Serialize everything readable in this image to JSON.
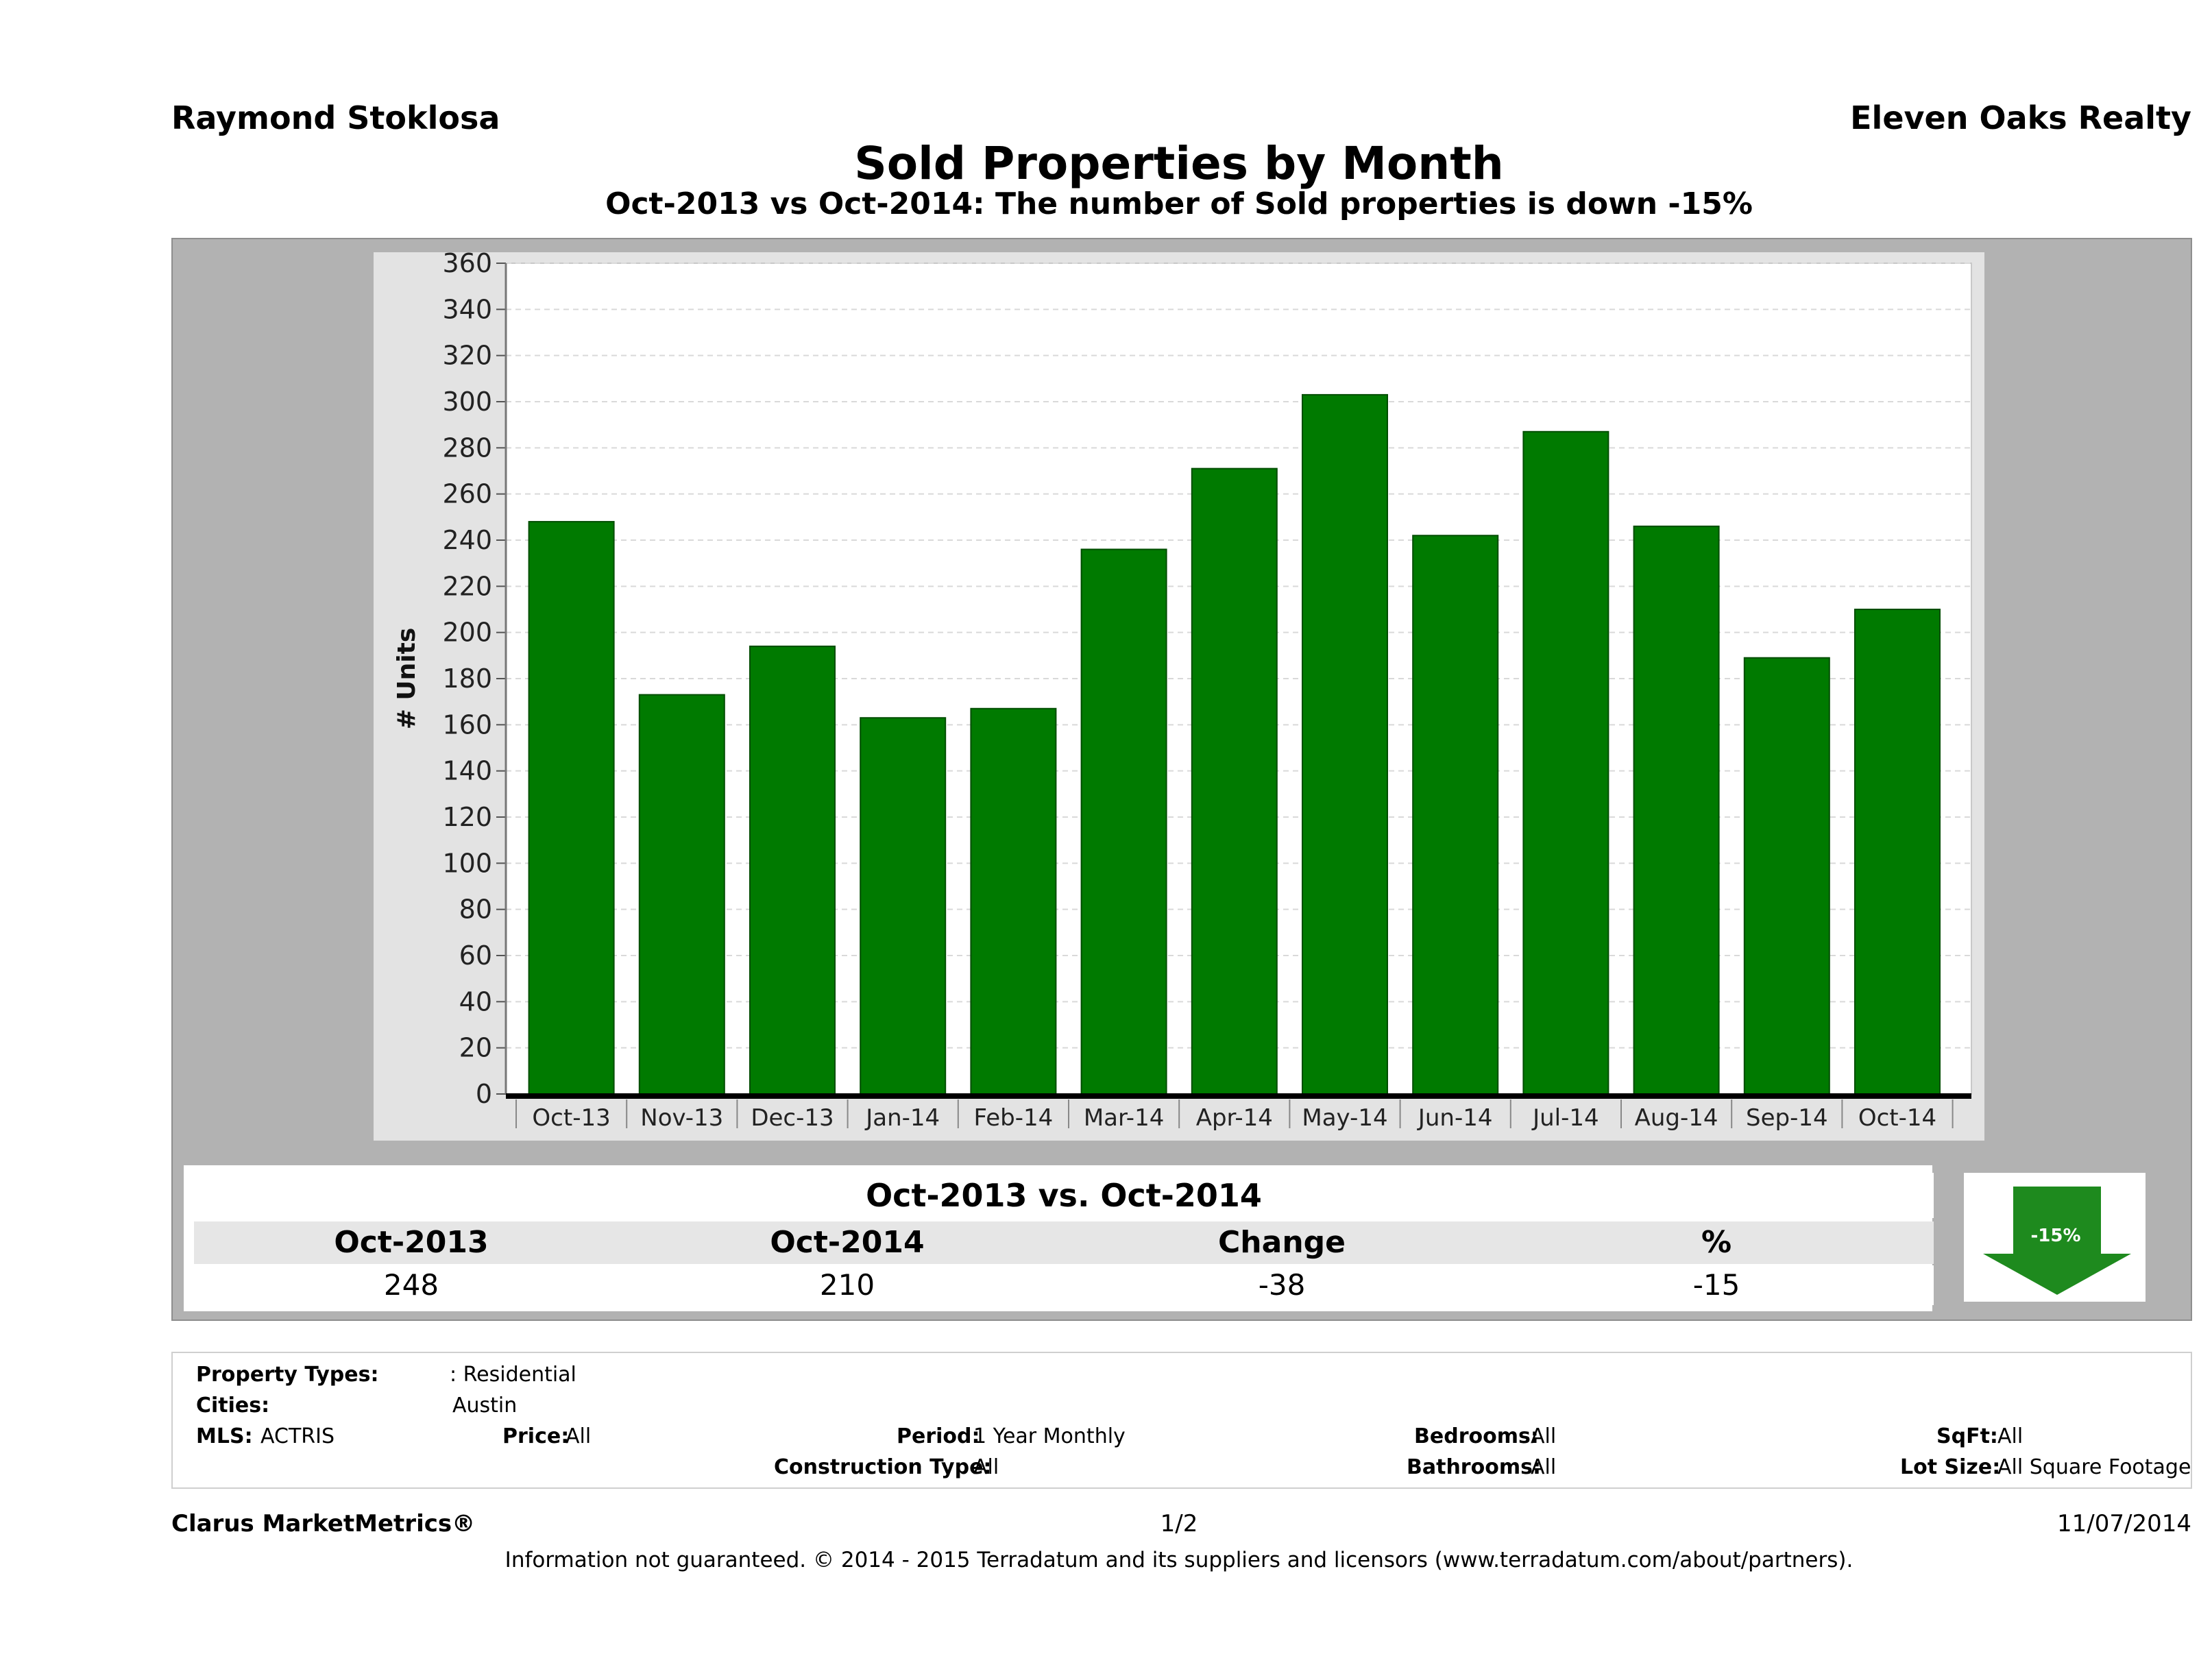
{
  "header": {
    "agent": "Raymond Stoklosa",
    "company": "Eleven Oaks Realty",
    "title": "Sold Properties by Month",
    "subtitle": "Oct-2013 vs Oct-2014: The number of Sold  properties is down -15%"
  },
  "chart_data": {
    "type": "bar",
    "categories": [
      "Oct-13",
      "Nov-13",
      "Dec-13",
      "Jan-14",
      "Feb-14",
      "Mar-14",
      "Apr-14",
      "May-14",
      "Jun-14",
      "Jul-14",
      "Aug-14",
      "Sep-14",
      "Oct-14"
    ],
    "values": [
      248,
      173,
      194,
      163,
      167,
      236,
      271,
      303,
      242,
      287,
      246,
      189,
      210
    ],
    "ylabel": "# Units",
    "ylim": [
      0,
      360
    ],
    "yticks": [
      0,
      20,
      40,
      60,
      80,
      100,
      120,
      140,
      160,
      180,
      200,
      220,
      240,
      260,
      280,
      300,
      320,
      340,
      360
    ],
    "grid": true,
    "bar_color": "#007a00"
  },
  "summary": {
    "caption": "Oct-2013 vs. Oct-2014",
    "headers": [
      "Oct-2013",
      "Oct-2014",
      "Change",
      "%"
    ],
    "values": [
      "248",
      "210",
      "-38",
      "-15"
    ],
    "badge": "-15%",
    "badge_color": "#1e8a1e"
  },
  "filters": {
    "property_types_label": "Property Types:",
    "property_types_value": ": Residential",
    "cities_label": "Cities:",
    "cities_value": "Austin",
    "mls_label": "MLS:",
    "mls_value": "ACTRIS",
    "price_label": "Price:",
    "price_value": "All",
    "period_label": "Period:",
    "period_value": "1 Year Monthly",
    "construction_label": "Construction Type:",
    "construction_value": "All",
    "bedrooms_label": "Bedrooms:",
    "bedrooms_value": "All",
    "bathrooms_label": "Bathrooms:",
    "bathrooms_value": "All",
    "sqft_label": "SqFt:",
    "sqft_value": "All",
    "lotsize_label": "Lot Size:",
    "lotsize_value": "All Square Footage"
  },
  "footer": {
    "brand": "Clarus MarketMetrics®",
    "page": "1/2",
    "date": "11/07/2014",
    "disclaimer": "Information not guaranteed. © 2014 - 2015 Terradatum and its suppliers and licensors (www.terradatum.com/about/partners)."
  }
}
